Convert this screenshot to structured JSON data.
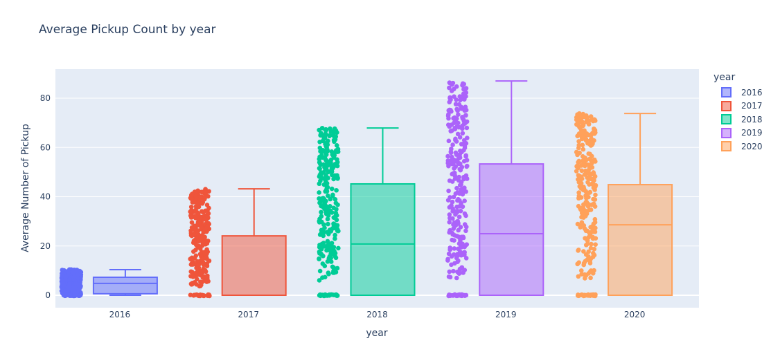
{
  "chart_data": {
    "type": "box",
    "title": "Average Pickup Count by year",
    "xlabel": "year",
    "ylabel": "Average Number of Pickup",
    "ylim": [
      -5,
      92
    ],
    "yticks": [
      0,
      20,
      40,
      60,
      80
    ],
    "grid": true,
    "points": "all (jittered, shown left of each box)",
    "legend": {
      "title": "year",
      "position": "right"
    },
    "categories": [
      "2016",
      "2017",
      "2018",
      "2019",
      "2020"
    ],
    "series": [
      {
        "name": "2016",
        "color": "#636efa",
        "lowerfence": 0,
        "q1": 0.6,
        "median": 4.8,
        "q3": 7.3,
        "upperfence": 10.4,
        "points_max": 10.5
      },
      {
        "name": "2017",
        "color": "#ef553b",
        "lowerfence": 0,
        "q1": 0,
        "median": 0,
        "q3": 24.1,
        "upperfence": 43.2,
        "points_max": 43.2
      },
      {
        "name": "2018",
        "color": "#00cc96",
        "lowerfence": 0,
        "q1": 0,
        "median": 20.8,
        "q3": 45.2,
        "upperfence": 67.9,
        "points_max": 67.9
      },
      {
        "name": "2019",
        "color": "#ab63fa",
        "lowerfence": 0,
        "q1": 0,
        "median": 25.0,
        "q3": 53.3,
        "upperfence": 87.0,
        "points_max": 87.0
      },
      {
        "name": "2020",
        "color": "#ffa15a",
        "lowerfence": 0,
        "q1": 0,
        "median": 28.6,
        "q3": 44.9,
        "upperfence": 73.8,
        "points_max": 73.8
      }
    ]
  },
  "title": "Average Pickup Count by year",
  "legend": {
    "title": "year",
    "items": [
      {
        "label": "2016",
        "color": "#636efa"
      },
      {
        "label": "2017",
        "color": "#ef553b"
      },
      {
        "label": "2018",
        "color": "#00cc96"
      },
      {
        "label": "2019",
        "color": "#ab63fa"
      },
      {
        "label": "2020",
        "color": "#ffa15a"
      }
    ]
  }
}
